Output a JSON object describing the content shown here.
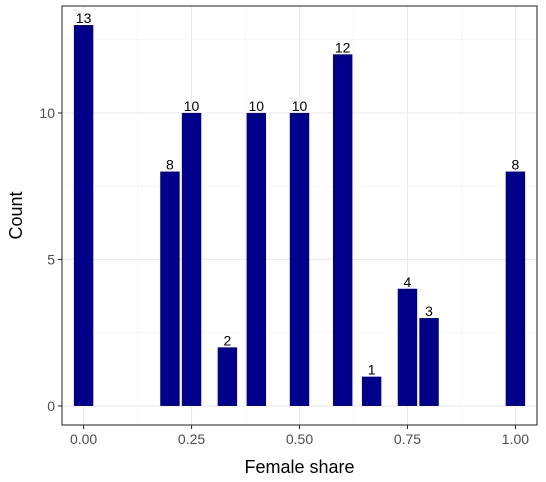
{
  "chart_data": {
    "type": "bar",
    "xlabel": "Female share",
    "ylabel": "Count",
    "xlim": [
      -0.05,
      1.05
    ],
    "ylim": [
      -0.65,
      13.65
    ],
    "x_ticks": [
      0.0,
      0.25,
      0.5,
      0.75,
      1.0
    ],
    "x_tick_labels": [
      "0.00",
      "0.25",
      "0.50",
      "0.75",
      "1.00"
    ],
    "y_ticks": [
      0,
      5,
      10
    ],
    "y_tick_labels": [
      "0",
      "5",
      "10"
    ],
    "bar_width": 0.045,
    "grid": true,
    "bar_color": "#00008B",
    "points": [
      {
        "x": 0.0,
        "value": 13,
        "label": "13"
      },
      {
        "x": 0.2,
        "value": 8,
        "label": "8"
      },
      {
        "x": 0.25,
        "value": 10,
        "label": "10"
      },
      {
        "x": 0.333,
        "value": 2,
        "label": "2"
      },
      {
        "x": 0.4,
        "value": 10,
        "label": "10"
      },
      {
        "x": 0.5,
        "value": 10,
        "label": "10"
      },
      {
        "x": 0.6,
        "value": 12,
        "label": "12"
      },
      {
        "x": 0.667,
        "value": 1,
        "label": "1"
      },
      {
        "x": 0.75,
        "value": 4,
        "label": "4"
      },
      {
        "x": 0.8,
        "value": 3,
        "label": "3"
      },
      {
        "x": 1.0,
        "value": 8,
        "label": "8"
      }
    ]
  }
}
